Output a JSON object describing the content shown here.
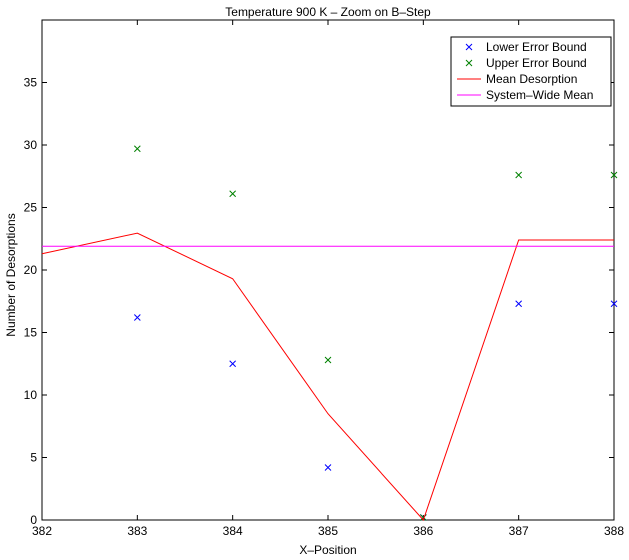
{
  "chart_data": {
    "type": "line",
    "title": "Temperature 900 K – Zoom on B–Step",
    "xlabel": "X–Position",
    "ylabel": "Number of Desorptions",
    "xlim": [
      382,
      388
    ],
    "ylim": [
      0,
      40
    ],
    "xticks": [
      382,
      383,
      384,
      385,
      386,
      387,
      388
    ],
    "yticks": [
      0,
      5,
      10,
      15,
      20,
      25,
      30,
      35
    ],
    "grid": false,
    "legend_position": "top-right",
    "series": [
      {
        "name": "Lower Error Bound",
        "kind": "marker",
        "marker": "x",
        "color": "#0000ff",
        "x": [
          383,
          384,
          385,
          386,
          387,
          388
        ],
        "y": [
          16.2,
          12.5,
          4.2,
          0.2,
          17.3,
          17.3
        ]
      },
      {
        "name": "Upper Error Bound",
        "kind": "marker",
        "marker": "x",
        "color": "#008000",
        "x": [
          383,
          384,
          385,
          386,
          387,
          388
        ],
        "y": [
          29.7,
          26.1,
          12.8,
          0.2,
          27.6,
          27.6
        ]
      },
      {
        "name": "Mean Desorption",
        "kind": "line",
        "color": "#ff0000",
        "x": [
          382,
          383,
          384,
          385,
          386,
          387,
          388
        ],
        "y": [
          21.3,
          22.95,
          19.3,
          8.5,
          0,
          22.4,
          22.4
        ]
      },
      {
        "name": "System–Wide Mean",
        "kind": "line",
        "color": "#ff00ff",
        "x": [
          382,
          388
        ],
        "y": [
          21.9,
          21.9
        ]
      }
    ]
  }
}
